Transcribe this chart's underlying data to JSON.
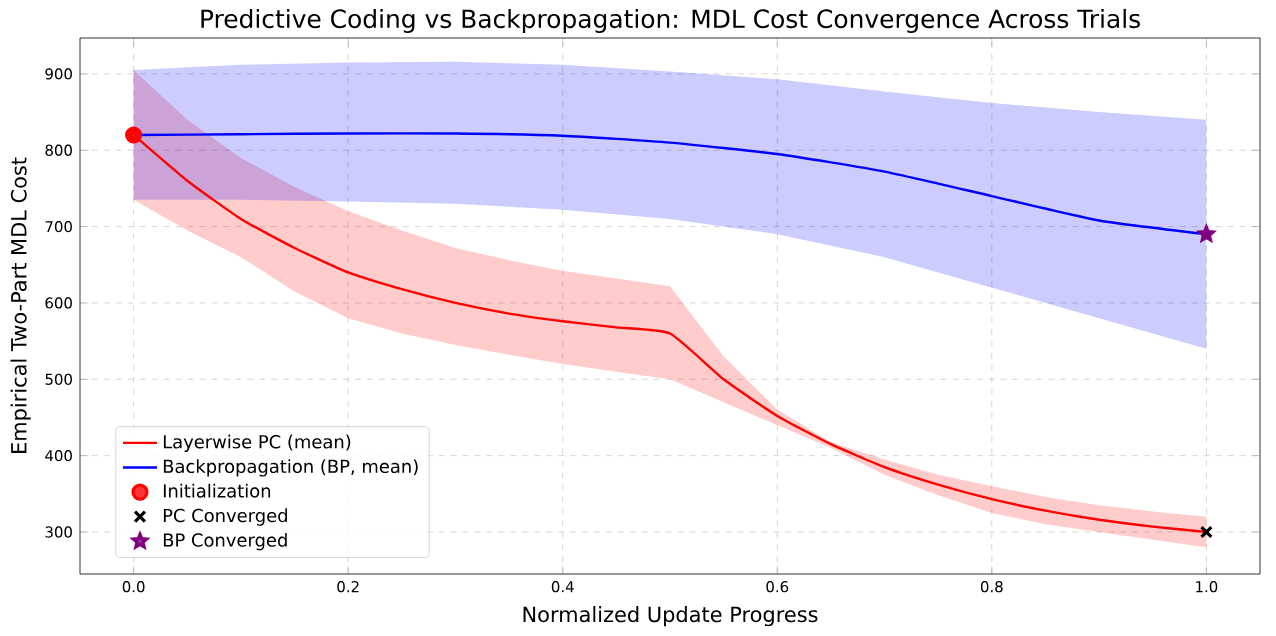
{
  "chart_data": {
    "type": "line",
    "title": "Predictive Coding vs Backpropagation: MDL Cost Convergence Across Trials",
    "xlabel": "Normalized Update Progress",
    "ylabel": "Empirical Two-Part MDL Cost",
    "xlim": [
      -0.05,
      1.05
    ],
    "ylim": [
      245,
      947
    ],
    "xticks": [
      {
        "value": 0,
        "label": "0.0"
      },
      {
        "value": 0.2,
        "label": "0.2"
      },
      {
        "value": 0.4,
        "label": "0.4"
      },
      {
        "value": 0.6,
        "label": "0.6"
      },
      {
        "value": 0.8,
        "label": "0.8"
      },
      {
        "value": 1,
        "label": "1.0"
      }
    ],
    "yticks": [
      300,
      400,
      500,
      600,
      700,
      800,
      900
    ],
    "grid": true,
    "legend": "bottom left",
    "series": [
      {
        "name": "Layerwise PC (mean)",
        "color": "#ff0000",
        "x": [
          0,
          0.05,
          0.1,
          0.15,
          0.2,
          0.25,
          0.3,
          0.35,
          0.4,
          0.45,
          0.5,
          0.55,
          0.6,
          0.65,
          0.7,
          0.75,
          0.8,
          0.85,
          0.9,
          0.95,
          1.0
        ],
        "values": [
          820,
          760,
          710,
          672,
          640,
          618,
          600,
          586,
          576,
          568,
          560,
          500,
          452,
          415,
          385,
          362,
          343,
          328,
          316,
          307,
          300
        ],
        "lower": [
          735,
          695,
          660,
          615,
          580,
          560,
          545,
          532,
          520,
          510,
          500,
          470,
          440,
          410,
          375,
          348,
          325,
          310,
          300,
          290,
          280
        ],
        "upper": [
          905,
          840,
          790,
          752,
          720,
          695,
          672,
          656,
          642,
          632,
          622,
          530,
          460,
          418,
          395,
          375,
          360,
          346,
          335,
          327,
          320
        ]
      },
      {
        "name": "Backpropagation (BP, mean)",
        "color": "#0000ff",
        "x": [
          0,
          0.1,
          0.2,
          0.3,
          0.4,
          0.5,
          0.6,
          0.7,
          0.8,
          0.9,
          1.0
        ],
        "values": [
          820,
          821,
          822,
          822,
          819,
          810,
          795,
          772,
          740,
          708,
          690
        ],
        "lower": [
          735,
          735,
          733,
          730,
          722,
          710,
          690,
          660,
          620,
          580,
          540
        ],
        "upper": [
          905,
          912,
          915,
          916,
          912,
          903,
          893,
          877,
          862,
          850,
          840
        ]
      },
      {
        "name": "Initialization",
        "type": "scatter",
        "marker": "circle",
        "color": "#ff0000",
        "x": [
          0
        ],
        "values": [
          820
        ]
      },
      {
        "name": "PC Converged",
        "type": "scatter",
        "marker": "cross",
        "color": "#000000",
        "x": [
          1.0
        ],
        "values": [
          300
        ]
      },
      {
        "name": "BP Converged",
        "type": "scatter",
        "marker": "star",
        "color": "#800080",
        "x": [
          1.0
        ],
        "values": [
          690
        ]
      }
    ]
  }
}
